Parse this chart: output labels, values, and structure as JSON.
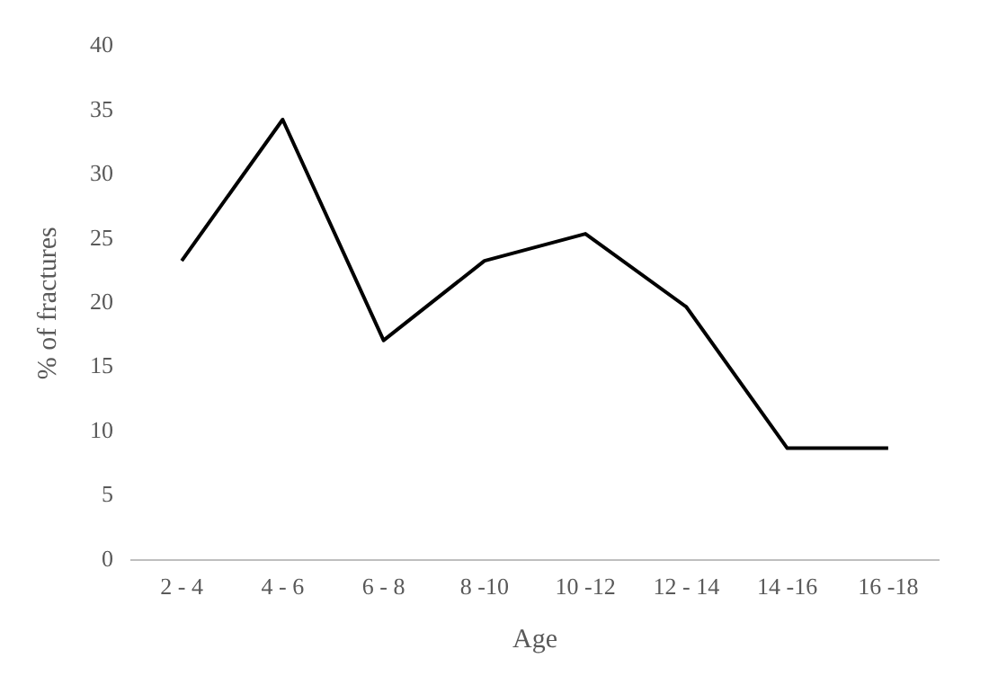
{
  "chart_data": {
    "type": "line",
    "xlabel": "Age",
    "ylabel": "% of fractures",
    "categories": [
      "2 - 4",
      "4 - 6",
      "6 - 8",
      "8 -10",
      "10 -12",
      "12 - 14",
      "14 -16",
      "16 -18"
    ],
    "series": [
      {
        "color": "#000000",
        "values": [
          23.3,
          34.3,
          17.1,
          23.3,
          25.4,
          19.7,
          8.7,
          8.7
        ]
      }
    ],
    "ylim": [
      0,
      40
    ],
    "yticks": [
      0,
      5,
      10,
      15,
      20,
      25,
      30,
      35,
      40
    ],
    "grid": false,
    "legend": false,
    "marker": "none",
    "line_style": "solid"
  }
}
